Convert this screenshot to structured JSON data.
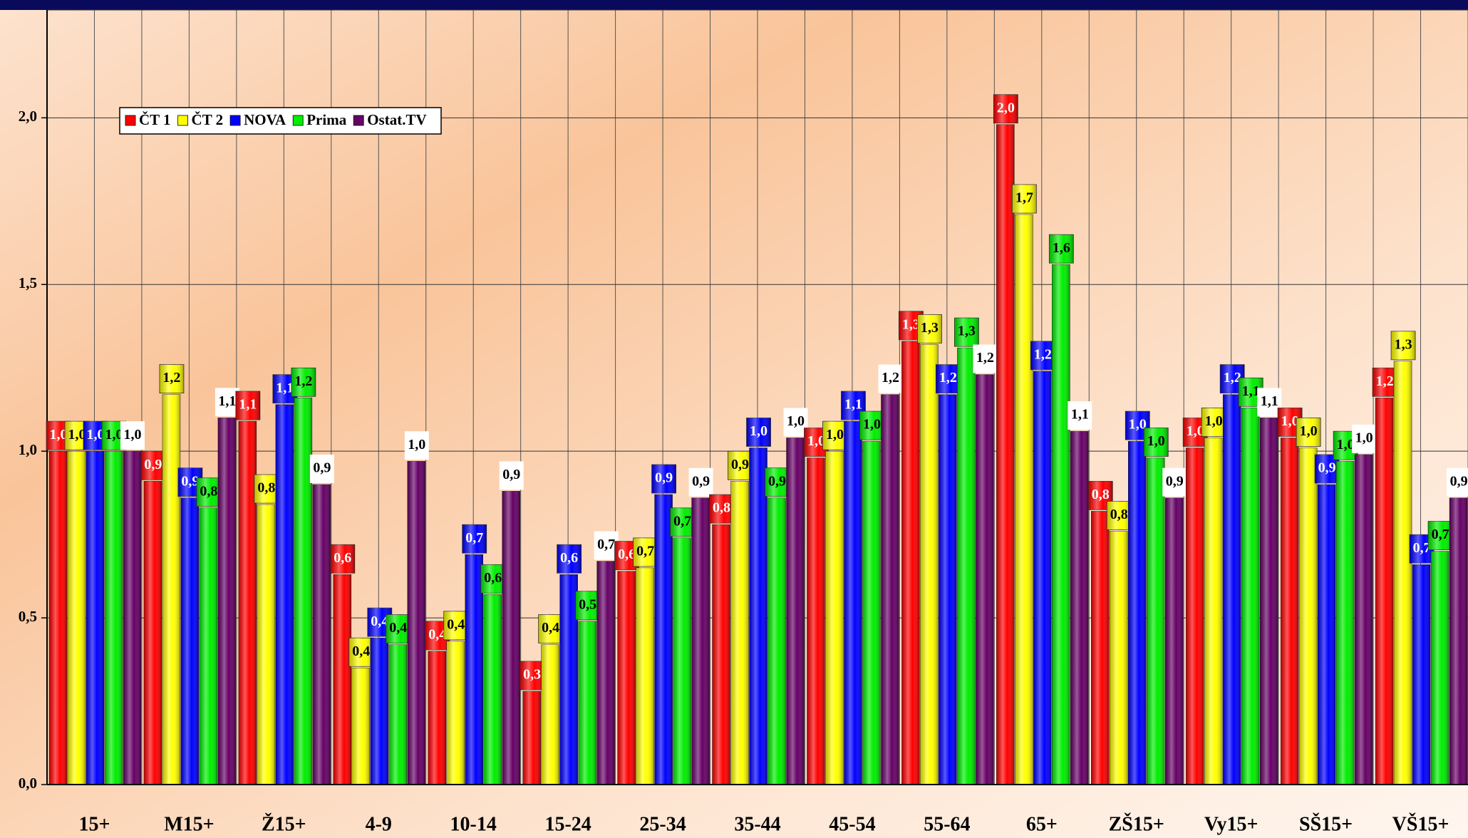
{
  "chart_data": {
    "type": "bar",
    "categories": [
      "15+",
      "M15+",
      "Ž15+",
      "4-9",
      "10-14",
      "15-24",
      "25-34",
      "35-44",
      "45-54",
      "55-64",
      "65+",
      "ZŠ15+",
      "Vy15+",
      "SŠ15+",
      "VŠ15+"
    ],
    "series": [
      {
        "name": "ČT 1",
        "color": "#ff0000",
        "values": [
          1.0,
          0.91,
          1.09,
          0.63,
          0.4,
          0.28,
          0.64,
          0.78,
          0.98,
          1.33,
          1.98,
          0.82,
          1.01,
          1.04,
          1.16
        ],
        "value_labels": [
          "1,0",
          "0,9",
          "1,1",
          "0,6",
          "0,4",
          "0,3",
          "0,6",
          "0,8",
          "1,0",
          "1,3",
          "2,0",
          "0,8",
          "1,0",
          "1,0",
          "1,2"
        ]
      },
      {
        "name": "ČT 2",
        "color": "#ffff00",
        "values": [
          1.0,
          1.17,
          0.84,
          0.35,
          0.43,
          0.42,
          0.65,
          0.91,
          1.0,
          1.32,
          1.71,
          0.76,
          1.04,
          1.01,
          1.27
        ],
        "value_labels": [
          "1,0",
          "1,2",
          "0,8",
          "0,4",
          "0,4",
          "0,4",
          "0,7",
          "0,9",
          "1,0",
          "1,3",
          "1,7",
          "0,8",
          "1,0",
          "1,0",
          "1,3"
        ]
      },
      {
        "name": "NOVA",
        "color": "#0000ff",
        "values": [
          1.0,
          0.86,
          1.14,
          0.44,
          0.69,
          0.63,
          0.87,
          1.01,
          1.09,
          1.17,
          1.24,
          1.03,
          1.17,
          0.9,
          0.66
        ],
        "value_labels": [
          "1,0",
          "0,9",
          "1,1",
          "0,4",
          "0,7",
          "0,6",
          "0,9",
          "1,0",
          "1,1",
          "1,2",
          "1,2",
          "1,0",
          "1,2",
          "0,9",
          "0,7"
        ]
      },
      {
        "name": "Prima",
        "color": "#00ee00",
        "values": [
          1.0,
          0.83,
          1.16,
          0.42,
          0.57,
          0.49,
          0.74,
          0.86,
          1.03,
          1.31,
          1.56,
          0.98,
          1.13,
          0.97,
          0.7
        ],
        "value_labels": [
          "1,0",
          "0,8",
          "1,2",
          "0,4",
          "0,6",
          "0,5",
          "0,7",
          "0,9",
          "1,0",
          "1,3",
          "1,6",
          "1,0",
          "1,1",
          "1,0",
          "0,7"
        ]
      },
      {
        "name": "Ostat.TV",
        "color": "#660066",
        "values": [
          1.0,
          1.1,
          0.9,
          0.97,
          0.88,
          0.67,
          0.86,
          1.04,
          1.17,
          1.23,
          1.06,
          0.86,
          1.1,
          0.99,
          0.86
        ],
        "value_labels": [
          "1,0",
          "1,1",
          "0,9",
          "1,0",
          "0,9",
          "0,7",
          "0,9",
          "1,0",
          "1,2",
          "1,2",
          "1,1",
          "0,9",
          "1,1",
          "1,0",
          "0,9"
        ]
      }
    ],
    "ylim": [
      0,
      2.3
    ],
    "yticks": [
      {
        "value": 0,
        "label": "0,0"
      },
      {
        "value": 0.5,
        "label": "0,5"
      },
      {
        "value": 1.0,
        "label": "1,0"
      },
      {
        "value": 1.5,
        "label": "1,5"
      },
      {
        "value": 2.0,
        "label": "2,0"
      }
    ],
    "grid": true,
    "legend": "upper left"
  }
}
